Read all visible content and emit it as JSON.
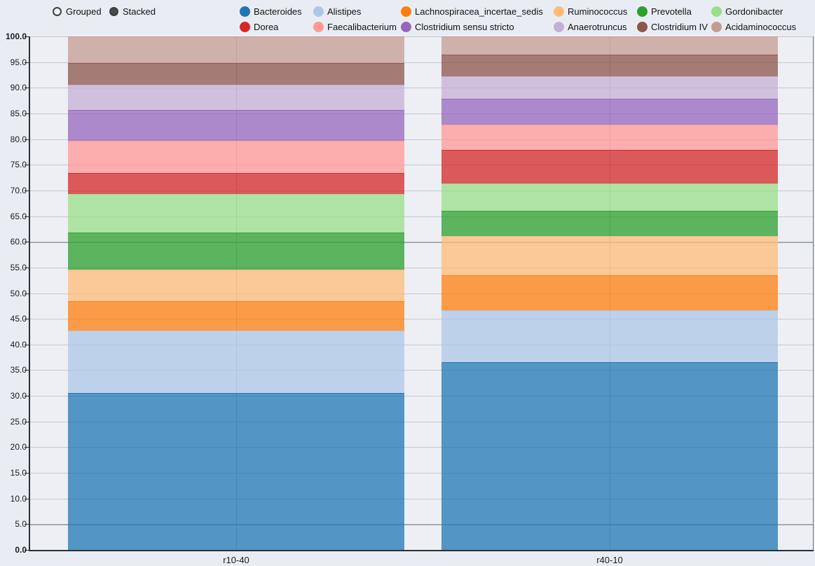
{
  "controls": {
    "grouped": {
      "label": "Grouped",
      "selected": false
    },
    "stacked": {
      "label": "Stacked",
      "selected": true
    }
  },
  "chart_data": {
    "type": "bar",
    "stacked": true,
    "orientation": "vertical",
    "categories": [
      "r10-40",
      "r40-10"
    ],
    "series": [
      {
        "name": "Bacteroides",
        "color": "#1f77b4",
        "values": [
          30.6,
          36.6
        ]
      },
      {
        "name": "Alistipes",
        "color": "#aec7e8",
        "values": [
          12.1,
          10.1
        ]
      },
      {
        "name": "Lachnospiracea_incertae_sedis",
        "color": "#ff7f0e",
        "values": [
          5.8,
          6.8
        ]
      },
      {
        "name": "Ruminococcus",
        "color": "#ffbb78",
        "values": [
          6.1,
          7.6
        ]
      },
      {
        "name": "Prevotella",
        "color": "#2ca02c",
        "values": [
          7.2,
          5.0
        ]
      },
      {
        "name": "Gordonibacter",
        "color": "#98df8a",
        "values": [
          7.5,
          5.2
        ]
      },
      {
        "name": "Dorea",
        "color": "#d62728",
        "values": [
          4.1,
          6.6
        ]
      },
      {
        "name": "Faecalibacterium",
        "color": "#ff9896",
        "values": [
          6.3,
          4.9
        ]
      },
      {
        "name": "Clostridium sensu stricto",
        "color": "#9467bd",
        "values": [
          6.0,
          5.0
        ]
      },
      {
        "name": "Anaerotruncus",
        "color": "#c5b0d5",
        "values": [
          4.9,
          4.4
        ]
      },
      {
        "name": "Clostridium IV",
        "color": "#8c564b",
        "values": [
          4.2,
          4.2
        ]
      },
      {
        "name": "Acidaminococcus",
        "color": "#c49c94",
        "values": [
          5.2,
          3.6
        ]
      }
    ],
    "ylim": [
      0,
      100
    ],
    "ytick_step": 5,
    "ytick_labels": [
      "0.0",
      "5.0",
      "10.0",
      "15.0",
      "20.0",
      "25.0",
      "30.0",
      "35.0",
      "40.0",
      "45.0",
      "50.0",
      "55.0",
      "60.0",
      "65.0",
      "70.0",
      "75.0",
      "80.0",
      "85.0",
      "90.0",
      "95.0",
      "100.0"
    ],
    "bold_tick_labels": [
      "0.0",
      "100.0"
    ],
    "emphasized_gridlines": [
      5,
      60
    ],
    "grid": true,
    "legend_position": "top",
    "bar_fill_opacity": 0.75
  }
}
